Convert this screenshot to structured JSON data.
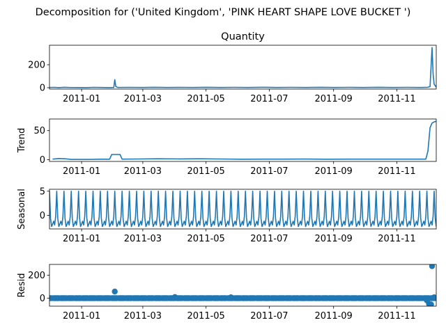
{
  "figure": {
    "suptitle": "Decomposition for ('United Kingdom', 'PINK  HEART SHAPE LOVE BUCKET ')",
    "line_color": "#1f77b4"
  },
  "chart_data": [
    {
      "type": "line",
      "id": "quantity",
      "title": "Quantity",
      "ylabel": "",
      "x_range": [
        "2010-12-01",
        "2011-12-09"
      ],
      "ylim": [
        -12,
        370
      ],
      "yticks": [
        0,
        200
      ],
      "ytick_labels": [
        "0",
        "200"
      ],
      "xtick_labels": [
        "2011-01",
        "2011-03",
        "2011-05",
        "2011-07",
        "2011-09",
        "2011-11"
      ],
      "points": [
        [
          "2010-12-01",
          2
        ],
        [
          "2010-12-06",
          3
        ],
        [
          "2010-12-10",
          1
        ],
        [
          "2010-12-15",
          4
        ],
        [
          "2010-12-20",
          2
        ],
        [
          "2011-01-06",
          1
        ],
        [
          "2011-01-12",
          3
        ],
        [
          "2011-01-20",
          2
        ],
        [
          "2011-01-28",
          1
        ],
        [
          "2011-02-01",
          2
        ],
        [
          "2011-02-02",
          70
        ],
        [
          "2011-02-03",
          10
        ],
        [
          "2011-02-05",
          2
        ],
        [
          "2011-02-15",
          3
        ],
        [
          "2011-03-01",
          2
        ],
        [
          "2011-03-12",
          4
        ],
        [
          "2011-03-25",
          2
        ],
        [
          "2011-04-05",
          3
        ],
        [
          "2011-04-18",
          2
        ],
        [
          "2011-05-02",
          4
        ],
        [
          "2011-05-15",
          2
        ],
        [
          "2011-05-28",
          3
        ],
        [
          "2011-06-10",
          2
        ],
        [
          "2011-06-24",
          4
        ],
        [
          "2011-07-08",
          2
        ],
        [
          "2011-07-22",
          3
        ],
        [
          "2011-08-05",
          2
        ],
        [
          "2011-08-19",
          4
        ],
        [
          "2011-09-02",
          2
        ],
        [
          "2011-09-16",
          3
        ],
        [
          "2011-09-30",
          2
        ],
        [
          "2011-10-14",
          4
        ],
        [
          "2011-10-28",
          2
        ],
        [
          "2011-11-11",
          3
        ],
        [
          "2011-11-24",
          2
        ],
        [
          "2011-12-01",
          4
        ],
        [
          "2011-12-03",
          10
        ],
        [
          "2011-12-05",
          350
        ],
        [
          "2011-12-06",
          120
        ],
        [
          "2011-12-07",
          30
        ],
        [
          "2011-12-09",
          5
        ]
      ]
    },
    {
      "type": "line",
      "id": "trend",
      "title": "",
      "ylabel": "Trend",
      "x_range": [
        "2010-12-01",
        "2011-12-09"
      ],
      "ylim": [
        -3,
        70
      ],
      "yticks": [
        0,
        50
      ],
      "ytick_labels": [
        "0",
        "50"
      ],
      "xtick_labels": [
        "2011-01",
        "2011-03",
        "2011-05",
        "2011-07",
        "2011-09",
        "2011-11"
      ],
      "points": [
        [
          "2010-12-04",
          1
        ],
        [
          "2010-12-10",
          2
        ],
        [
          "2010-12-16",
          1.5
        ],
        [
          "2010-12-22",
          0.5
        ],
        [
          "2011-01-10",
          0.5
        ],
        [
          "2011-01-20",
          1
        ],
        [
          "2011-01-28",
          0.8
        ],
        [
          "2011-01-30",
          9
        ],
        [
          "2011-02-07",
          9
        ],
        [
          "2011-02-09",
          1
        ],
        [
          "2011-02-25",
          1.2
        ],
        [
          "2011-03-15",
          1.5
        ],
        [
          "2011-04-05",
          1.3
        ],
        [
          "2011-04-25",
          1.6
        ],
        [
          "2011-05-15",
          1.2
        ],
        [
          "2011-06-05",
          0.8
        ],
        [
          "2011-06-25",
          1.0
        ],
        [
          "2011-07-15",
          0.9
        ],
        [
          "2011-08-05",
          1.1
        ],
        [
          "2011-08-25",
          0.8
        ],
        [
          "2011-09-15",
          1.0
        ],
        [
          "2011-10-05",
          0.9
        ],
        [
          "2011-10-25",
          1.0
        ],
        [
          "2011-11-15",
          1.0
        ],
        [
          "2011-11-29",
          1.0
        ],
        [
          "2011-12-01",
          15
        ],
        [
          "2011-12-03",
          55
        ],
        [
          "2011-12-05",
          63
        ],
        [
          "2011-12-07",
          65
        ],
        [
          "2011-12-09",
          66
        ]
      ]
    },
    {
      "type": "line",
      "id": "seasonal",
      "title": "",
      "ylabel": "Seasonal",
      "x_range": [
        "2010-12-01",
        "2011-12-09"
      ],
      "ylim": [
        -2.8,
        5.4
      ],
      "yticks": [
        0,
        5
      ],
      "ytick_labels": [
        "0",
        "5"
      ],
      "xtick_labels": [
        "2011-01",
        "2011-03",
        "2011-05",
        "2011-07",
        "2011-09",
        "2011-11"
      ],
      "period_days": 7,
      "pattern": [
        5.0,
        -0.6,
        -2.3,
        -1.8,
        -1.2,
        -2.0,
        -0.2
      ]
    },
    {
      "type": "scatter",
      "id": "resid",
      "title": "",
      "ylabel": "Resid",
      "x_range": [
        "2010-12-01",
        "2011-12-09"
      ],
      "ylim": [
        -70,
        295
      ],
      "yticks": [
        0,
        200
      ],
      "ytick_labels": [
        "0",
        "200"
      ],
      "xtick_labels": [
        "2011-01",
        "2011-03",
        "2011-05",
        "2011-07",
        "2011-09",
        "2011-11"
      ],
      "baseline": 0,
      "outliers": [
        [
          "2011-02-02",
          58
        ],
        [
          "2011-04-01",
          10
        ],
        [
          "2011-05-25",
          8
        ],
        [
          "2011-11-30",
          -20
        ],
        [
          "2011-12-02",
          -50
        ],
        [
          "2011-12-04",
          -55
        ],
        [
          "2011-12-05",
          280
        ],
        [
          "2011-12-07",
          8
        ]
      ]
    }
  ]
}
